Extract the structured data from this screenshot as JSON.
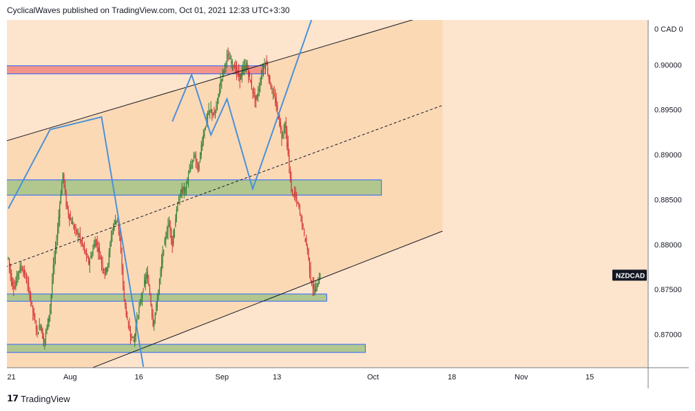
{
  "header": {
    "published": "CyclicalWaves published on TradingView.com, Oct 01, 2021 12:33 UTC+3:30"
  },
  "footer": {
    "brand": "TradingView"
  },
  "colors": {
    "plot_bg": "#fde4cc",
    "channel_fill": "#fbd9b5",
    "bull": "#2e7d32",
    "bear": "#d32f2f",
    "wave": "#4a90d9",
    "red_zone": "#f28b82",
    "green_zone": "#a8c48a",
    "zone_border": "#2962ff",
    "label_bg": "#131722"
  },
  "chart_data": {
    "type": "candlestick",
    "symbol": "NZDCAD",
    "currency_label": "0 CAD 0",
    "price_label": "NZDCAD",
    "price_label_value": 0.8766,
    "yticks": [
      "0.90000",
      "0.89500",
      "0.89000",
      "0.88500",
      "0.88000",
      "0.87500",
      "0.87000"
    ],
    "ylim": [
      0.8663,
      0.905
    ],
    "xticks": [
      "21",
      "Aug",
      "16",
      "Sep",
      "13",
      "Oct",
      "18",
      "Nov",
      "15"
    ],
    "last_close": 0.8766,
    "price_path": [
      [
        0,
        0.8785
      ],
      [
        1,
        0.8758
      ],
      [
        2,
        0.8752
      ],
      [
        3,
        0.877
      ],
      [
        4,
        0.8775
      ],
      [
        5,
        0.8768
      ],
      [
        6,
        0.8755
      ],
      [
        7,
        0.8738
      ],
      [
        8,
        0.8718
      ],
      [
        9,
        0.8702
      ],
      [
        10,
        0.8712
      ],
      [
        11,
        0.869
      ],
      [
        12,
        0.8708
      ],
      [
        13,
        0.873
      ],
      [
        14,
        0.8775
      ],
      [
        15,
        0.8805
      ],
      [
        16,
        0.8845
      ],
      [
        17,
        0.888
      ],
      [
        18,
        0.8845
      ],
      [
        19,
        0.883
      ],
      [
        20,
        0.8822
      ],
      [
        21,
        0.8815
      ],
      [
        22,
        0.881
      ],
      [
        23,
        0.88
      ],
      [
        24,
        0.879
      ],
      [
        25,
        0.878
      ],
      [
        26,
        0.879
      ],
      [
        27,
        0.8805
      ],
      [
        28,
        0.8795
      ],
      [
        29,
        0.878
      ],
      [
        30,
        0.8768
      ],
      [
        31,
        0.878
      ],
      [
        32,
        0.881
      ],
      [
        33,
        0.8825
      ],
      [
        34,
        0.883
      ],
      [
        35,
        0.879
      ],
      [
        36,
        0.874
      ],
      [
        37,
        0.8715
      ],
      [
        38,
        0.87
      ],
      [
        39,
        0.8692
      ],
      [
        40,
        0.8718
      ],
      [
        41,
        0.8735
      ],
      [
        42,
        0.8752
      ],
      [
        43,
        0.8768
      ],
      [
        44,
        0.8745
      ],
      [
        45,
        0.8712
      ],
      [
        46,
        0.873
      ],
      [
        47,
        0.876
      ],
      [
        48,
        0.879
      ],
      [
        49,
        0.881
      ],
      [
        50,
        0.8825
      ],
      [
        51,
        0.88
      ],
      [
        52,
        0.883
      ],
      [
        53,
        0.885
      ],
      [
        54,
        0.8862
      ],
      [
        55,
        0.886
      ],
      [
        56,
        0.8878
      ],
      [
        57,
        0.889
      ],
      [
        58,
        0.89
      ],
      [
        59,
        0.8882
      ],
      [
        60,
        0.891
      ],
      [
        61,
        0.8928
      ],
      [
        62,
        0.8945
      ],
      [
        63,
        0.895
      ],
      [
        64,
        0.8942
      ],
      [
        65,
        0.896
      ],
      [
        66,
        0.8982
      ],
      [
        67,
        0.8995
      ],
      [
        68,
        0.901
      ],
      [
        69,
        0.9005
      ],
      [
        70,
        0.9
      ],
      [
        71,
        0.8992
      ],
      [
        72,
        0.8985
      ],
      [
        73,
        0.8995
      ],
      [
        74,
        0.9
      ],
      [
        75,
        0.8985
      ],
      [
        76,
        0.897
      ],
      [
        77,
        0.896
      ],
      [
        78,
        0.8975
      ],
      [
        79,
        0.8995
      ],
      [
        80,
        0.9005
      ],
      [
        81,
        0.8985
      ],
      [
        82,
        0.897
      ],
      [
        83,
        0.896
      ],
      [
        84,
        0.8942
      ],
      [
        85,
        0.892
      ],
      [
        86,
        0.8935
      ],
      [
        87,
        0.89
      ],
      [
        88,
        0.886
      ],
      [
        89,
        0.8855
      ],
      [
        90,
        0.8845
      ],
      [
        91,
        0.883
      ],
      [
        92,
        0.881
      ],
      [
        93,
        0.8795
      ],
      [
        94,
        0.8762
      ],
      [
        95,
        0.8748
      ],
      [
        96,
        0.8755
      ],
      [
        97,
        0.8766
      ]
    ],
    "channel": {
      "upper": [
        [
          -1,
          0.8915
        ],
        [
          135,
          0.906
        ]
      ],
      "middle": [
        [
          -1,
          0.8775
        ],
        [
          135,
          0.8955
        ]
      ],
      "lower": [
        [
          -1,
          0.8625
        ],
        [
          135,
          0.8815
        ]
      ]
    },
    "zones": [
      {
        "color": "red",
        "x": [
          -1,
          80
        ],
        "y": [
          0.899,
          0.8999
        ]
      },
      {
        "color": "green",
        "x": [
          -1,
          116
        ],
        "y": [
          0.8855,
          0.8872
        ]
      },
      {
        "color": "green",
        "x": [
          -1,
          99
        ],
        "y": [
          0.8737,
          0.8745
        ]
      },
      {
        "color": "green",
        "x": [
          -1,
          111
        ],
        "y": [
          0.868,
          0.8689
        ]
      }
    ],
    "wave_path": [
      [
        0,
        0.884
      ],
      [
        13,
        0.8928
      ],
      [
        29,
        0.8942
      ],
      [
        42,
        0.8664
      ]
    ],
    "wave_path_2": [
      [
        51,
        0.8937
      ],
      [
        57,
        0.8989
      ],
      [
        63,
        0.8922
      ],
      [
        68,
        0.8962
      ],
      [
        76,
        0.8862
      ],
      [
        96,
        0.9068
      ]
    ]
  }
}
